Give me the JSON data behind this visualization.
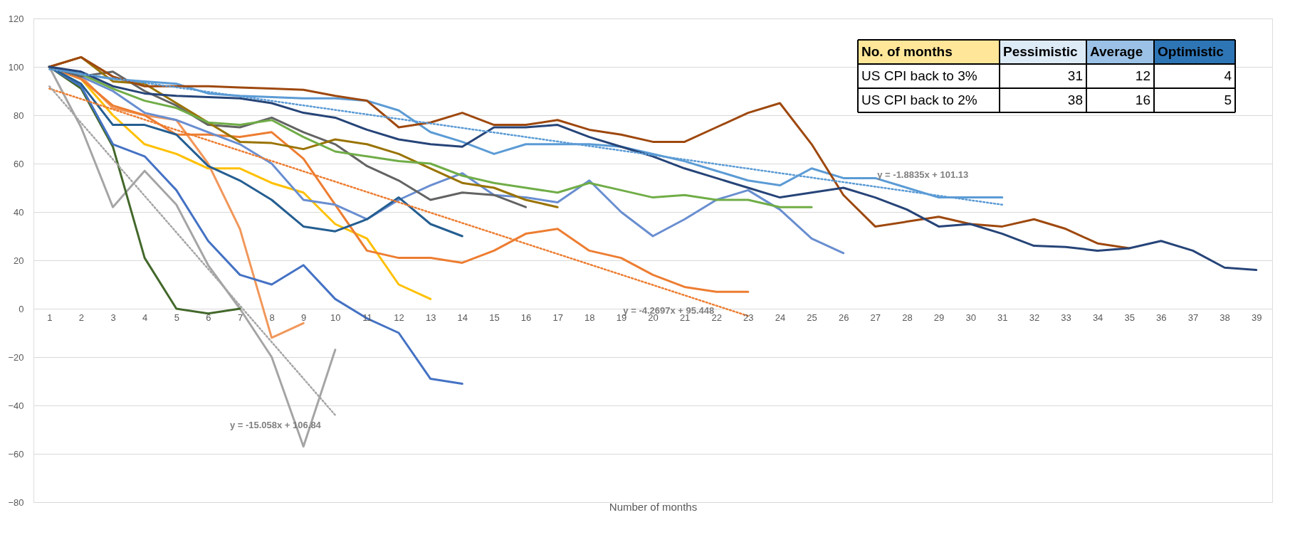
{
  "chart_data": {
    "type": "line",
    "xlabel": "Number of months",
    "x": [
      1,
      2,
      3,
      4,
      5,
      6,
      7,
      8,
      9,
      10,
      11,
      12,
      13,
      14,
      15,
      16,
      17,
      18,
      19,
      20,
      21,
      22,
      23,
      24,
      25,
      26,
      27,
      28,
      29,
      30,
      31,
      32,
      33,
      34,
      35,
      36,
      37,
      38,
      39
    ],
    "xlim": [
      0.5,
      39.5
    ],
    "xticks": [
      1,
      2,
      3,
      4,
      5,
      6,
      7,
      8,
      9,
      10,
      11,
      12,
      13,
      14,
      15,
      16,
      17,
      18,
      19,
      20,
      21,
      22,
      23,
      24,
      25,
      26,
      27,
      28,
      29,
      30,
      31,
      32,
      33,
      34,
      35,
      36,
      37,
      38,
      39
    ],
    "ylim": [
      -80,
      120
    ],
    "yticks": [
      -80,
      -60,
      -40,
      -20,
      0,
      20,
      40,
      60,
      80,
      100,
      120
    ],
    "grid": "y",
    "legend": false,
    "marker": "none",
    "series": [
      {
        "color": "#a5a5a5",
        "values": [
          100,
          75,
          42,
          57,
          43,
          18,
          0,
          -20,
          -57,
          -17,
          null,
          null,
          null,
          null,
          null,
          null,
          null,
          null,
          null,
          null,
          null,
          null,
          null,
          null,
          null,
          null,
          null,
          null,
          null,
          null,
          null,
          null,
          null,
          null,
          null,
          null,
          null,
          null,
          null
        ]
      },
      {
        "color": "#43682b",
        "values": [
          100,
          91,
          67,
          21,
          0,
          -2,
          0,
          null,
          null,
          null,
          null,
          null,
          null,
          null,
          null,
          null,
          null,
          null,
          null,
          null,
          null,
          null,
          null,
          null,
          null,
          null,
          null,
          null,
          null,
          null,
          null,
          null,
          null,
          null,
          null,
          null,
          null,
          null,
          null
        ]
      },
      {
        "color": "#ffc000",
        "values": [
          100,
          95,
          80,
          68,
          64,
          58,
          58,
          52,
          48,
          35,
          29,
          10,
          4,
          null,
          null,
          null,
          null,
          null,
          null,
          null,
          null,
          null,
          null,
          null,
          null,
          null,
          null,
          null,
          null,
          null,
          null,
          null,
          null,
          null,
          null,
          null,
          null,
          null,
          null
        ]
      },
      {
        "color": "#f1975a",
        "values": [
          100,
          96,
          83,
          80,
          78,
          60,
          33,
          -12,
          -6,
          null,
          null,
          null,
          null,
          null,
          null,
          null,
          null,
          null,
          null,
          null,
          null,
          null,
          null,
          null,
          null,
          null,
          null,
          null,
          null,
          null,
          null,
          null,
          null,
          null,
          null,
          null,
          null,
          null,
          null
        ]
      },
      {
        "color": "#4472c4",
        "values": [
          100,
          92,
          68,
          63,
          49,
          28,
          14,
          10,
          18,
          4,
          -4,
          -10,
          -29,
          -31,
          null,
          null,
          null,
          null,
          null,
          null,
          null,
          null,
          null,
          null,
          null,
          null,
          null,
          null,
          null,
          null,
          null,
          null,
          null,
          null,
          null,
          null,
          null,
          null,
          null
        ]
      },
      {
        "color": "#ed7d31",
        "values": [
          100,
          95,
          84,
          80,
          72,
          72,
          71,
          73,
          62,
          43,
          24,
          21,
          21,
          19,
          24,
          31,
          33,
          24,
          21,
          14,
          9,
          7,
          7,
          null,
          null,
          null,
          null,
          null,
          null,
          null,
          null,
          null,
          null,
          null,
          null,
          null,
          null,
          null,
          null
        ]
      },
      {
        "color": "#698ed0",
        "values": [
          100,
          96,
          90,
          81,
          78,
          73,
          68,
          60,
          45,
          43,
          37,
          45,
          51,
          56,
          47,
          46,
          44,
          53,
          40,
          30,
          37,
          45,
          49,
          41,
          29,
          23,
          null,
          null,
          null,
          null,
          null,
          null,
          null,
          null,
          null,
          null,
          null,
          null,
          null
        ]
      },
      {
        "color": "#255e91",
        "values": [
          100,
          93,
          76,
          76,
          72,
          59,
          53,
          45,
          34,
          32,
          37,
          46,
          35,
          30,
          null,
          null,
          null,
          null,
          null,
          null,
          null,
          null,
          null,
          null,
          null,
          null,
          null,
          null,
          null,
          null,
          null,
          null,
          null,
          null,
          null,
          null,
          null,
          null,
          null
        ]
      },
      {
        "color": "#636363",
        "values": [
          100,
          96,
          98,
          90,
          84,
          76,
          75,
          79,
          73,
          68,
          59,
          53,
          45,
          48,
          47,
          42,
          null,
          null,
          null,
          null,
          null,
          null,
          null,
          null,
          null,
          null,
          null,
          null,
          null,
          null,
          null,
          null,
          null,
          null,
          null,
          null,
          null,
          null,
          null
        ]
      },
      {
        "color": "#997300",
        "values": [
          100,
          104,
          94,
          93,
          85,
          77,
          69,
          68.5,
          66,
          70,
          68,
          64,
          58,
          52,
          50,
          45,
          42,
          null,
          null,
          null,
          null,
          null,
          null,
          null,
          null,
          null,
          null,
          null,
          null,
          null,
          null,
          null,
          null,
          null,
          null,
          null,
          null,
          null,
          null
        ]
      },
      {
        "color": "#70ad47",
        "values": [
          100,
          97,
          91,
          86,
          83,
          77,
          76,
          78,
          71,
          65,
          63,
          61,
          60,
          55,
          52,
          50,
          48,
          52,
          49,
          46,
          47,
          45,
          45,
          42,
          42,
          null,
          null,
          null,
          null,
          null,
          null,
          null,
          null,
          null,
          null,
          null,
          null,
          null,
          null
        ]
      },
      {
        "color": "#5b9bd5",
        "values": [
          100,
          97,
          95,
          94,
          93,
          89,
          88,
          87.5,
          87,
          87,
          86,
          82,
          73,
          69,
          64,
          68,
          68,
          68,
          67,
          64,
          61,
          57,
          53,
          51,
          58,
          54,
          54,
          50,
          46,
          46,
          46,
          null,
          null,
          null,
          null,
          null,
          null,
          null,
          null
        ]
      },
      {
        "color": "#9e480e",
        "values": [
          100,
          104,
          96,
          92,
          92,
          92,
          91.5,
          91,
          90.5,
          88,
          86,
          75,
          77,
          81,
          76,
          76,
          78,
          74,
          72,
          69,
          69,
          75,
          81,
          85,
          68,
          47,
          34,
          36,
          38,
          35,
          34,
          37,
          33,
          27,
          25,
          null,
          null,
          null,
          null
        ]
      },
      {
        "color": "#264478",
        "values": [
          100,
          98,
          92,
          89,
          88,
          87.5,
          87,
          85,
          81,
          79,
          74,
          70,
          68,
          67,
          75,
          75,
          76,
          71,
          67,
          63,
          58,
          54,
          50,
          46,
          48,
          50,
          46,
          41,
          34,
          35,
          31,
          26,
          25.5,
          24,
          25,
          28,
          24,
          17,
          16
        ]
      },
      {
        "type": "line",
        "line_style": "dotted",
        "color": "#5b9bd5",
        "x": [
          1,
          31
        ],
        "values": [
          99,
          43
        ]
      },
      {
        "type": "line",
        "line_style": "dotted",
        "color": "#ed7d31",
        "x": [
          1,
          23
        ],
        "values": [
          91,
          -3
        ]
      },
      {
        "type": "line",
        "line_style": "dotted",
        "color": "#a5a5a5",
        "x": [
          1,
          10
        ],
        "values": [
          92,
          -44
        ]
      }
    ],
    "annotations": [
      {
        "text": "y = -1.8835x + 101.13",
        "x": 28.5,
        "y": 47
      },
      {
        "text": "y = -4.2697x + 95.448",
        "x": 20.5,
        "y": 8
      },
      {
        "text": "y = -15.058x + 106.84",
        "x": 10,
        "y": -44
      },
      "No. of months",
      "Pessimistic",
      "Average",
      "Optimistic",
      "US CPI back to 3%",
      "31",
      "12",
      "4",
      "US CPI back to 2%",
      "38",
      "16",
      "5"
    ]
  }
}
